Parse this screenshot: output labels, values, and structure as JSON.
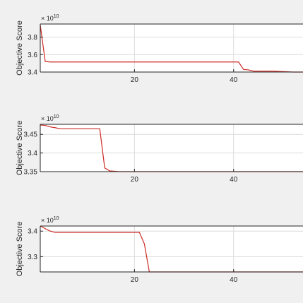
{
  "figure": {
    "background": "#f0f0f0",
    "line_color": "#cd2a25",
    "axes_color": "#262626",
    "grid_color": "#dcdcdc"
  },
  "chart_data": [
    {
      "type": "line",
      "ylabel": "Objective Score",
      "multiplier": {
        "base": "× 10",
        "exp": "10"
      },
      "xlim": [
        1,
        54
      ],
      "ylim": [
        3.4,
        3.95
      ],
      "xticks": [
        20,
        40
      ],
      "yticks": [
        3.4,
        3.6,
        3.8
      ],
      "ytick_labels": [
        "3.4",
        "3.6",
        "3.8"
      ],
      "grid": true,
      "series": [
        {
          "x": [
            1,
            2,
            3,
            10,
            20,
            30,
            40,
            41,
            42,
            43,
            44,
            45,
            46,
            47,
            48,
            50,
            52,
            54
          ],
          "y": [
            3.94,
            3.52,
            3.515,
            3.515,
            3.515,
            3.515,
            3.515,
            3.515,
            3.43,
            3.425,
            3.41,
            3.41,
            3.41,
            3.41,
            3.41,
            3.405,
            3.4,
            3.4
          ]
        }
      ]
    },
    {
      "type": "line",
      "ylabel": "Objective Score",
      "multiplier": {
        "base": "× 10",
        "exp": "10"
      },
      "xlim": [
        1,
        54
      ],
      "ylim": [
        3.35,
        3.477
      ],
      "xticks": [
        20,
        40
      ],
      "yticks": [
        3.35,
        3.4,
        3.45
      ],
      "ytick_labels": [
        "3.35",
        "3.4",
        "3.45"
      ],
      "grid": true,
      "series": [
        {
          "x": [
            1,
            2,
            3,
            4,
            5,
            10,
            13,
            14,
            15,
            16,
            17,
            20,
            30,
            40,
            54
          ],
          "y": [
            3.475,
            3.474,
            3.47,
            3.468,
            3.465,
            3.465,
            3.465,
            3.36,
            3.352,
            3.351,
            3.35,
            3.35,
            3.35,
            3.35,
            3.35
          ]
        }
      ]
    },
    {
      "type": "line",
      "ylabel": "Objective Score",
      "multiplier": {
        "base": "× 10",
        "exp": "10"
      },
      "xlim": [
        1,
        54
      ],
      "ylim": [
        3.24,
        3.42
      ],
      "xticks": [
        20,
        40
      ],
      "yticks": [
        3.3,
        3.4
      ],
      "ytick_labels": [
        "3.3",
        "3.4"
      ],
      "grid": true,
      "series": [
        {
          "x": [
            1,
            2,
            3,
            4,
            10,
            20,
            21,
            22,
            23,
            24,
            30,
            40,
            54
          ],
          "y": [
            3.42,
            3.41,
            3.4,
            3.395,
            3.395,
            3.395,
            3.395,
            3.35,
            3.24,
            3.24,
            3.24,
            3.24,
            3.24
          ]
        }
      ]
    }
  ]
}
